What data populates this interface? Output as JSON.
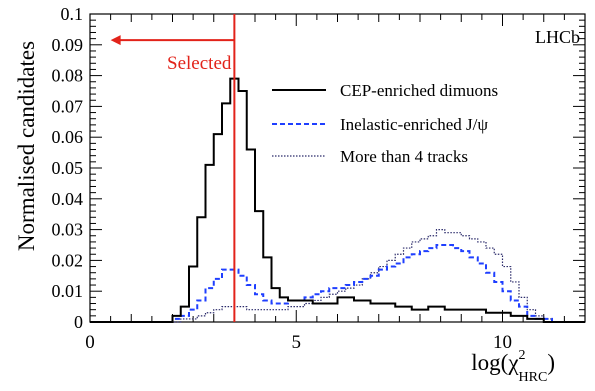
{
  "chart_data": {
    "type": "step-histogram",
    "title": "",
    "watermark": "LHCb",
    "xlabel": {
      "base": "log(χ",
      "sup": "2",
      "sub": "HRC",
      "close": ")"
    },
    "ylabel": "Normalised candidates",
    "xlim": [
      0,
      12
    ],
    "ylim": [
      0,
      0.1
    ],
    "x_ticks": [
      0,
      5,
      10
    ],
    "x_tick_labels": [
      "0",
      "5",
      "10"
    ],
    "y_ticks": [
      0,
      0.01,
      0.02,
      0.03,
      0.04,
      0.05,
      0.06,
      0.07,
      0.08,
      0.09,
      0.1
    ],
    "y_tick_labels": [
      "0",
      "0.01",
      "0.02",
      "0.03",
      "0.04",
      "0.05",
      "0.06",
      "0.07",
      "0.08",
      "0.09",
      "0.1"
    ],
    "bin_width": 0.2,
    "bin_start": 0,
    "legend_position": "top-right",
    "series": [
      {
        "name": "CEP-enriched dimuons",
        "style": "solid",
        "color": "#000000",
        "values": [
          0,
          0,
          0,
          0,
          0,
          0,
          0,
          0,
          0,
          0,
          0.002,
          0.005,
          0.018,
          0.034,
          0.051,
          0.061,
          0.071,
          0.079,
          0.075,
          0.056,
          0.036,
          0.021,
          0.011,
          0.008,
          0.007,
          0.007,
          0.007,
          0.006,
          0.006,
          0.006,
          0.008,
          0.008,
          0.007,
          0.007,
          0.006,
          0.006,
          0.006,
          0.005,
          0.005,
          0.004,
          0.004,
          0.005,
          0.005,
          0.004,
          0.004,
          0.004,
          0.004,
          0.004,
          0.003,
          0.003,
          0.003,
          0.002,
          0.002,
          0.001,
          0.001,
          0,
          0,
          0,
          0,
          0
        ]
      },
      {
        "name": "Inelastic-enriched J/ψ",
        "style": "dashed",
        "color": "#1f3fff",
        "values": [
          0,
          0,
          0,
          0,
          0,
          0,
          0,
          0,
          0,
          0,
          0.001,
          0.002,
          0.004,
          0.007,
          0.011,
          0.014,
          0.017,
          0.017,
          0.015,
          0.012,
          0.009,
          0.007,
          0.006,
          0.006,
          0.007,
          0.007,
          0.008,
          0.009,
          0.01,
          0.011,
          0.011,
          0.012,
          0.013,
          0.014,
          0.015,
          0.017,
          0.018,
          0.019,
          0.021,
          0.022,
          0.023,
          0.024,
          0.025,
          0.025,
          0.024,
          0.023,
          0.021,
          0.019,
          0.016,
          0.013,
          0.01,
          0.007,
          0.005,
          0.002,
          0.001,
          0.001,
          0,
          0,
          0,
          0
        ]
      },
      {
        "name": "More than 4 tracks",
        "style": "dotted",
        "color": "#2a2a6a",
        "values": [
          0,
          0,
          0,
          0,
          0,
          0,
          0,
          0,
          0,
          0,
          0,
          0.001,
          0.001,
          0.002,
          0.003,
          0.004,
          0.005,
          0.005,
          0.005,
          0.004,
          0.004,
          0.004,
          0.004,
          0.004,
          0.005,
          0.005,
          0.006,
          0.007,
          0.008,
          0.009,
          0.01,
          0.011,
          0.012,
          0.014,
          0.016,
          0.018,
          0.02,
          0.022,
          0.024,
          0.026,
          0.027,
          0.028,
          0.03,
          0.029,
          0.029,
          0.028,
          0.027,
          0.026,
          0.024,
          0.022,
          0.018,
          0.013,
          0.008,
          0.004,
          0.002,
          0.001,
          0,
          0,
          0,
          0
        ]
      }
    ],
    "selection": {
      "cut_value": 3.5,
      "label": "Selected",
      "arrow_to": 0.5,
      "arrow_y": 0.0915,
      "color": "#e2231a"
    }
  }
}
